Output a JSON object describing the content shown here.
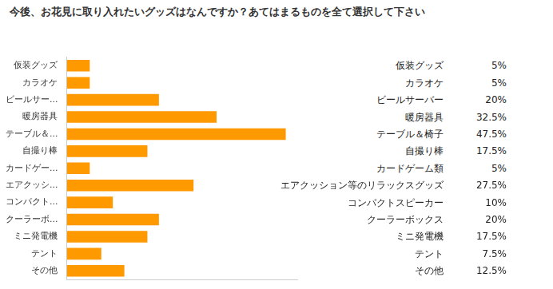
{
  "chart_data": {
    "type": "bar",
    "title": "今後、お花見に取り入れたいグッズはなんですか？あてはまるものを全て選択して下さい",
    "orientation": "horizontal",
    "categories": [
      "仮装グッズ",
      "カラオケ",
      "ビールサーバー",
      "暖房器具",
      "テーブル＆椅子",
      "自撮り棒",
      "カードゲーム類",
      "エアクッション等のリラックスグッズ",
      "コンパクトスピーカー",
      "クーラーボックス",
      "ミニ発電機",
      "テント",
      "その他"
    ],
    "axis_labels": [
      "仮装グッズ",
      "カラオケ",
      "ビールサー...",
      "暖房器具",
      "テーブル＆...",
      "自撮り棒",
      "カードゲー...",
      "エアクッシ...",
      "コンパクト...",
      "クーラーボ...",
      "ミニ発電機",
      "テント",
      "その他"
    ],
    "values": [
      5,
      5,
      20,
      32.5,
      47.5,
      17.5,
      5,
      27.5,
      10,
      20,
      17.5,
      7.5,
      12.5
    ],
    "value_labels": [
      "5%",
      "5%",
      "20%",
      "32.5%",
      "47.5%",
      "17.5%",
      "5%",
      "27.5%",
      "10%",
      "20%",
      "17.5%",
      "7.5%",
      "12.5%"
    ],
    "color": "#ff9900",
    "xlim": [
      0,
      50
    ],
    "grid": false,
    "tick_labels": "y"
  }
}
